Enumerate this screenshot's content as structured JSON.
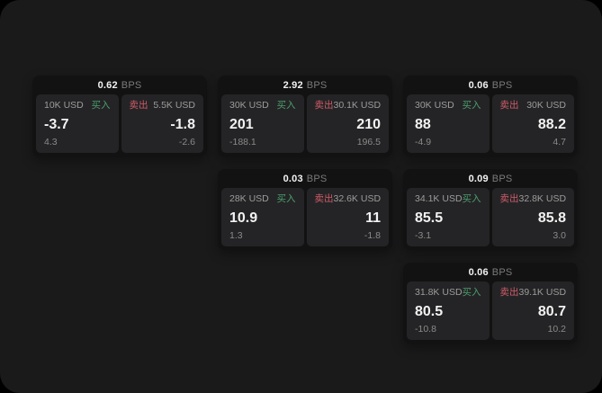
{
  "colors": {
    "page_bg": "#1a1a1b",
    "card_bg": "#121212",
    "panel_bg": "#242426",
    "accent_green": "#4c9e6d",
    "accent_red": "#cf5b68",
    "text_primary": "#f2f2f2",
    "text_label": "#9c9c9c",
    "text_muted": "#8a8a8a",
    "text_dim": "#7b7b7b"
  },
  "labels": {
    "bps_suffix": "BPS",
    "buy": "买入",
    "sell": "卖出"
  },
  "cards": [
    {
      "bps": "0.62",
      "buy": {
        "amount": "10K USD",
        "price": "-3.7",
        "delta": "4.3"
      },
      "sell": {
        "amount": "5.5K USD",
        "price": "-1.8",
        "delta": "-2.6"
      }
    },
    {
      "bps": "2.92",
      "buy": {
        "amount": "30K USD",
        "price": "201",
        "delta": "-188.1"
      },
      "sell": {
        "amount": "30.1K USD",
        "price": "210",
        "delta": "196.5"
      }
    },
    {
      "bps": "0.06",
      "buy": {
        "amount": "30K USD",
        "price": "88",
        "delta": "-4.9"
      },
      "sell": {
        "amount": "30K USD",
        "price": "88.2",
        "delta": "4.7"
      }
    },
    {
      "bps": "0.03",
      "buy": {
        "amount": "28K USD",
        "price": "10.9",
        "delta": "1.3"
      },
      "sell": {
        "amount": "32.6K USD",
        "price": "11",
        "delta": "-1.8"
      }
    },
    {
      "bps": "0.09",
      "buy": {
        "amount": "34.1K USD",
        "price": "85.5",
        "delta": "-3.1"
      },
      "sell": {
        "amount": "32.8K USD",
        "price": "85.8",
        "delta": "3.0"
      }
    },
    {
      "bps": "0.06",
      "buy": {
        "amount": "31.8K USD",
        "price": "80.5",
        "delta": "-10.8"
      },
      "sell": {
        "amount": "39.1K USD",
        "price": "80.7",
        "delta": "10.2"
      }
    }
  ]
}
